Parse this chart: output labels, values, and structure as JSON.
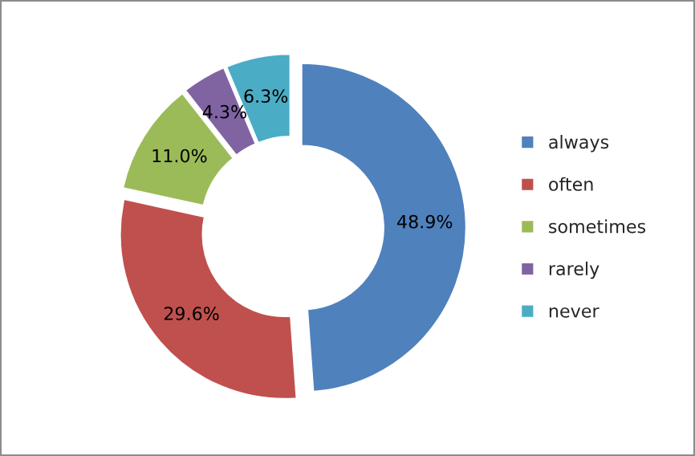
{
  "chart_data": {
    "type": "donut",
    "categories": [
      "always",
      "often",
      "sometimes",
      "rarely",
      "never"
    ],
    "values": [
      48.9,
      29.6,
      11.0,
      4.3,
      6.3
    ],
    "colors": [
      "#4f81bd",
      "#c0504d",
      "#9bbb59",
      "#8064a2",
      "#4bacc6"
    ],
    "value_labels": [
      "48.9%",
      "29.6%",
      "11.0%",
      "4.3%",
      "6.3%"
    ],
    "legend": "right"
  }
}
